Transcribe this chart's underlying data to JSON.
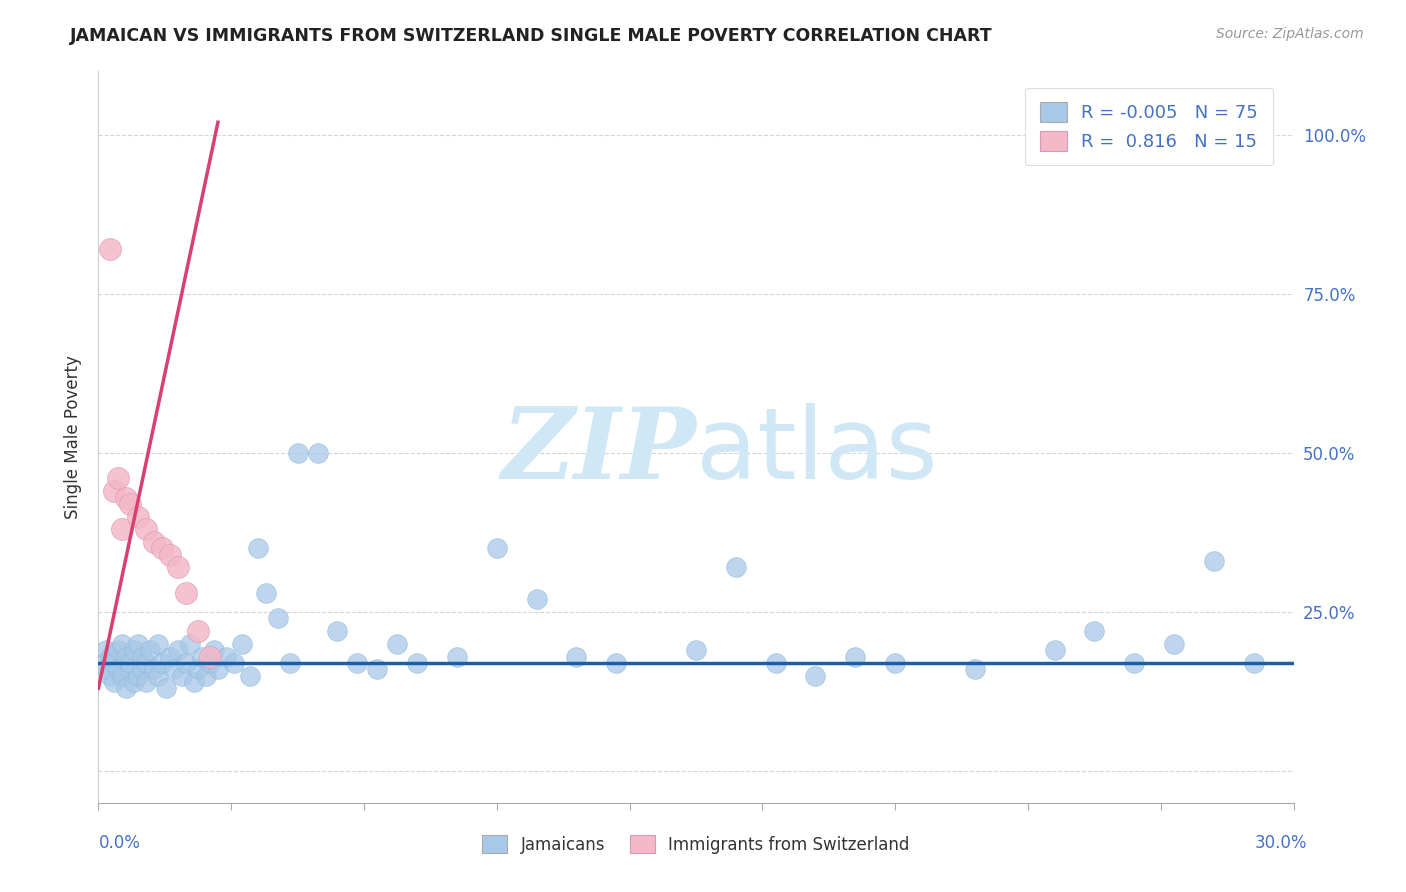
{
  "title": "JAMAICAN VS IMMIGRANTS FROM SWITZERLAND SINGLE MALE POVERTY CORRELATION CHART",
  "source_text": "Source: ZipAtlas.com",
  "ylabel": "Single Male Poverty",
  "legend_labels": [
    "Jamaicans",
    "Immigrants from Switzerland"
  ],
  "legend_r": [
    "-0.005",
    "0.816"
  ],
  "legend_n": [
    "75",
    "15"
  ],
  "blue_scatter_color": "#a8c8e8",
  "pink_scatter_color": "#f4b8c8",
  "blue_line_color": "#1a5fa8",
  "pink_line_color": "#d94070",
  "watermark_color": "#d0e8f5",
  "background_color": "#ffffff",
  "grid_color": "#cccccc",
  "right_tick_color": "#4472c4",
  "title_color": "#222222",
  "source_color": "#999999",
  "ylabel_color": "#333333",
  "x_min": 0.0,
  "x_max": 0.3,
  "y_min": -0.05,
  "y_max": 1.1,
  "yticks": [
    0.0,
    0.25,
    0.5,
    0.75,
    1.0
  ],
  "ytick_labels": [
    "",
    "25.0%",
    "50.0%",
    "75.0%",
    "100.0%"
  ],
  "blue_line_y": 0.17,
  "pink_line_x0": 0.0,
  "pink_line_y0": 0.13,
  "pink_line_x1": 0.03,
  "pink_line_y1": 1.02,
  "jamaicans_x": [
    0.001,
    0.002,
    0.002,
    0.003,
    0.003,
    0.004,
    0.004,
    0.005,
    0.005,
    0.006,
    0.006,
    0.007,
    0.007,
    0.008,
    0.008,
    0.009,
    0.009,
    0.01,
    0.01,
    0.011,
    0.011,
    0.012,
    0.012,
    0.013,
    0.014,
    0.015,
    0.015,
    0.016,
    0.017,
    0.018,
    0.019,
    0.02,
    0.021,
    0.022,
    0.023,
    0.024,
    0.025,
    0.026,
    0.027,
    0.028,
    0.029,
    0.03,
    0.032,
    0.034,
    0.036,
    0.038,
    0.04,
    0.042,
    0.045,
    0.048,
    0.05,
    0.055,
    0.06,
    0.065,
    0.07,
    0.075,
    0.08,
    0.09,
    0.1,
    0.11,
    0.12,
    0.13,
    0.15,
    0.16,
    0.17,
    0.18,
    0.19,
    0.2,
    0.22,
    0.24,
    0.25,
    0.26,
    0.27,
    0.28,
    0.29
  ],
  "jamaicans_y": [
    0.17,
    0.16,
    0.19,
    0.15,
    0.18,
    0.17,
    0.14,
    0.16,
    0.19,
    0.15,
    0.2,
    0.13,
    0.18,
    0.16,
    0.17,
    0.14,
    0.19,
    0.15,
    0.2,
    0.16,
    0.18,
    0.17,
    0.14,
    0.19,
    0.16,
    0.15,
    0.2,
    0.17,
    0.13,
    0.18,
    0.16,
    0.19,
    0.15,
    0.17,
    0.2,
    0.14,
    0.16,
    0.18,
    0.15,
    0.17,
    0.19,
    0.16,
    0.18,
    0.17,
    0.2,
    0.15,
    0.35,
    0.28,
    0.24,
    0.17,
    0.5,
    0.5,
    0.22,
    0.17,
    0.16,
    0.2,
    0.17,
    0.18,
    0.35,
    0.27,
    0.18,
    0.17,
    0.19,
    0.32,
    0.17,
    0.15,
    0.18,
    0.17,
    0.16,
    0.19,
    0.22,
    0.17,
    0.2,
    0.33,
    0.17
  ],
  "swiss_x": [
    0.003,
    0.004,
    0.005,
    0.006,
    0.007,
    0.008,
    0.01,
    0.012,
    0.014,
    0.016,
    0.018,
    0.02,
    0.022,
    0.025,
    0.028
  ],
  "swiss_y": [
    0.82,
    0.44,
    0.46,
    0.38,
    0.43,
    0.42,
    0.4,
    0.38,
    0.36,
    0.35,
    0.34,
    0.32,
    0.28,
    0.22,
    0.18
  ]
}
